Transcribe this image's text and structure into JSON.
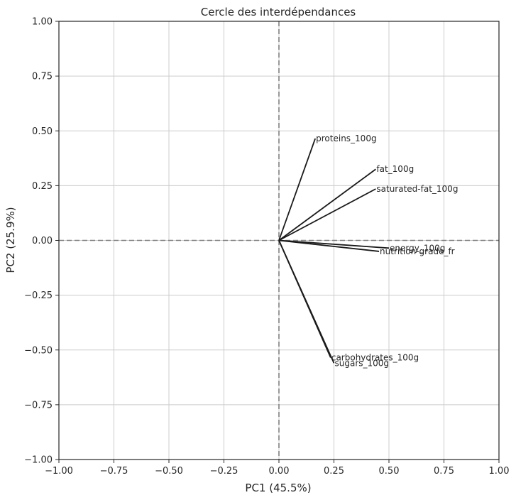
{
  "chart_data": {
    "type": "scatter",
    "title": "Cercle des interdépendances",
    "xlabel": "PC1 (45.5%)",
    "ylabel": "PC2 (25.9%)",
    "xlim": [
      -1,
      1
    ],
    "ylim": [
      -1,
      1
    ],
    "xticks": [
      -1.0,
      -0.75,
      -0.5,
      -0.25,
      0.0,
      0.25,
      0.5,
      0.75,
      1.0
    ],
    "yticks": [
      -1.0,
      -0.75,
      -0.5,
      -0.25,
      0.0,
      0.25,
      0.5,
      0.75,
      1.0
    ],
    "xtick_labels": [
      "−1.00",
      "−0.75",
      "−0.50",
      "−0.25",
      "0.00",
      "0.25",
      "0.50",
      "0.75",
      "1.00"
    ],
    "ytick_labels": [
      "−1.00",
      "−0.75",
      "−0.50",
      "−0.25",
      "0.00",
      "0.25",
      "0.50",
      "0.75",
      "1.00"
    ],
    "grid": true,
    "origin_lines": "dashed",
    "vectors": [
      {
        "label": "proteins_100g",
        "x": 0.165,
        "y": 0.465
      },
      {
        "label": "fat_100g",
        "x": 0.44,
        "y": 0.325
      },
      {
        "label": "saturated-fat_100g",
        "x": 0.44,
        "y": 0.235
      },
      {
        "label": "energy_100g",
        "x": 0.5,
        "y": -0.035
      },
      {
        "label": "nutrition-grade_fr",
        "x": 0.455,
        "y": -0.05
      },
      {
        "label": "carbohydrates_100g",
        "x": 0.235,
        "y": -0.535
      },
      {
        "label": "sugars_100g",
        "x": 0.25,
        "y": -0.56
      }
    ]
  }
}
